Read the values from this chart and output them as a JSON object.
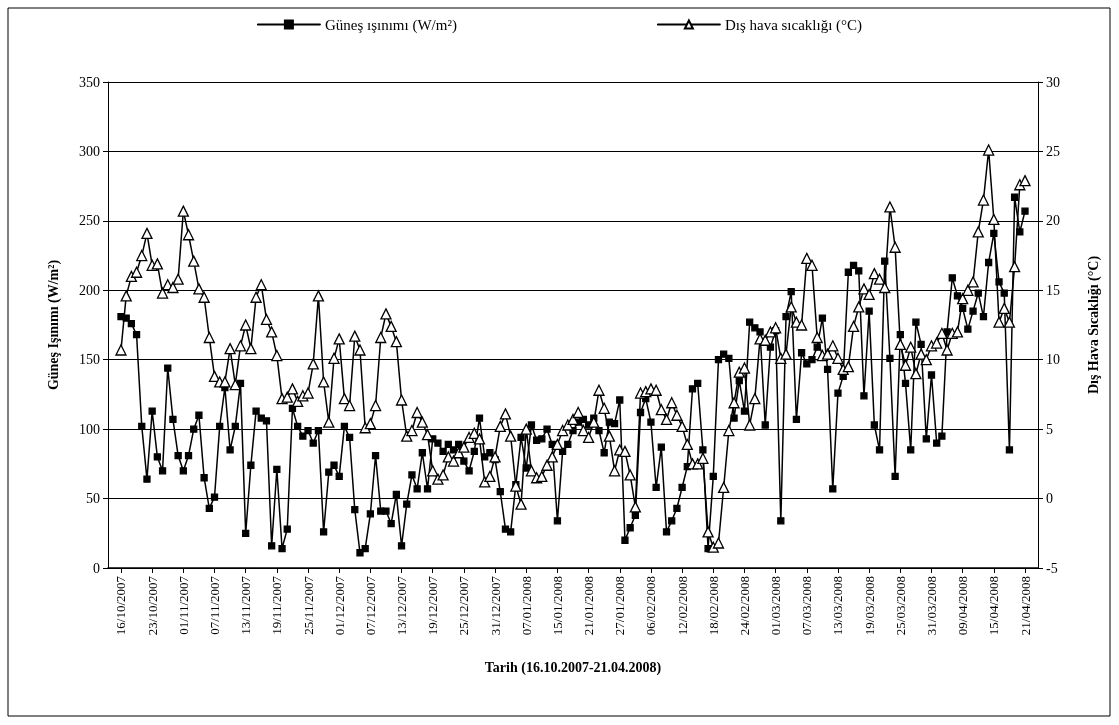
{
  "chart_data": {
    "type": "line",
    "xlabel": "Tarih (16.10.2007-21.04.2008)",
    "ylabel": "Güneş Işınımı (W/m²)",
    "y2label": "Dış Hava Sıcaklığı (°C)",
    "categories": [
      "16/10/2007",
      null,
      null,
      null,
      null,
      null,
      "23/10/2007",
      null,
      null,
      null,
      null,
      null,
      "01/11/2007",
      null,
      null,
      null,
      null,
      null,
      "07/11/2007",
      null,
      null,
      null,
      null,
      null,
      "13/11/2007",
      null,
      null,
      null,
      null,
      null,
      "19/11/2007",
      null,
      null,
      null,
      null,
      null,
      "25/11/2007",
      null,
      null,
      null,
      null,
      null,
      "01/12/2007",
      null,
      null,
      null,
      null,
      null,
      "07/12/2007",
      null,
      null,
      null,
      null,
      null,
      "13/12/2007",
      null,
      null,
      null,
      null,
      null,
      "19/12/2007",
      null,
      null,
      null,
      null,
      null,
      "25/12/2007",
      null,
      null,
      null,
      null,
      null,
      "31/12/2007",
      null,
      null,
      null,
      null,
      null,
      "07/01/2008",
      null,
      null,
      null,
      null,
      null,
      "15/01/2008",
      null,
      null,
      null,
      null,
      null,
      "21/01/2008",
      null,
      null,
      null,
      null,
      null,
      "27/01/2008",
      null,
      null,
      null,
      null,
      null,
      "06/02/2008",
      null,
      null,
      null,
      null,
      null,
      "12/02/2008",
      null,
      null,
      null,
      null,
      null,
      "18/02/2008",
      null,
      null,
      null,
      null,
      null,
      "24/02/2008",
      null,
      null,
      null,
      null,
      null,
      "01/03/2008",
      null,
      null,
      null,
      null,
      null,
      "07/03/2008",
      null,
      null,
      null,
      null,
      null,
      "13/03/2008",
      null,
      null,
      null,
      null,
      null,
      "19/03/2008",
      null,
      null,
      null,
      null,
      null,
      "25/03/2008",
      null,
      null,
      null,
      null,
      null,
      "31/03/2008",
      null,
      null,
      null,
      null,
      null,
      "09/04/2008",
      null,
      null,
      null,
      null,
      null,
      "15/04/2008",
      null,
      null,
      null,
      null,
      null,
      "21/04/2008"
    ],
    "series": [
      {
        "name": "Güneş ışınımı (W/m²)",
        "color": "#000000",
        "marker": "square",
        "values": [
          181,
          180,
          176,
          168,
          102,
          64,
          113,
          80,
          70,
          144,
          107,
          81,
          70,
          81,
          100,
          110,
          65,
          43,
          51,
          102,
          130,
          85,
          102,
          133,
          25,
          74,
          113,
          108,
          106,
          16,
          71,
          14,
          28,
          115,
          102,
          95,
          99,
          90,
          99,
          26,
          69,
          74,
          66,
          102,
          94,
          42,
          11,
          14,
          39,
          81,
          41,
          41,
          32,
          53,
          16,
          46,
          67,
          57,
          83,
          57,
          93,
          90,
          84,
          89,
          85,
          89,
          77,
          70,
          84,
          108,
          80,
          83,
          78,
          55,
          28,
          26,
          60,
          94,
          72,
          103,
          92,
          93,
          100,
          89,
          34,
          84,
          89,
          99,
          105,
          107,
          103,
          108,
          99,
          83,
          105,
          104,
          121,
          20,
          29,
          38,
          112,
          122,
          105,
          58,
          87,
          26,
          34,
          43,
          58,
          73,
          129,
          133,
          85,
          14,
          66,
          150,
          154,
          151,
          108,
          135,
          113,
          177,
          173,
          170,
          103,
          159,
          171,
          34,
          181,
          199,
          107,
          155,
          147,
          150,
          159,
          180,
          143,
          57,
          126,
          138,
          213,
          218,
          214,
          124,
          185,
          103,
          85,
          221,
          151,
          66,
          168,
          133,
          85,
          177,
          161,
          93,
          139,
          90,
          95,
          170,
          209,
          196,
          187,
          172,
          185,
          198,
          181,
          220,
          241,
          206,
          198,
          85,
          267,
          242,
          257
        ]
      },
      {
        "name": "Dış hava sıcaklığı (°C)",
        "color": "#000000",
        "marker": "triangle",
        "axis": "y2",
        "values": [
          10.7,
          14.6,
          16.0,
          16.3,
          17.5,
          19.1,
          16.8,
          16.9,
          14.8,
          15.4,
          15.2,
          15.8,
          20.7,
          19,
          17.1,
          15.1,
          14.5,
          11.6,
          8.8,
          8.4,
          8.4,
          10.8,
          8.2,
          11,
          12.5,
          10.8,
          14.5,
          15.4,
          12.9,
          12,
          10.3,
          7.2,
          7.3,
          7.9,
          7,
          7.4,
          7.6,
          9.7,
          14.6,
          8.4,
          5.5,
          10.1,
          11.5,
          7.2,
          6.7,
          11.7,
          10.7,
          5.1,
          5.4,
          6.7,
          11.6,
          13.3,
          12.4,
          11.3,
          7.1,
          4.5,
          4.9,
          6.2,
          5.5,
          4.6,
          2,
          1.4,
          1.7,
          3,
          2.7,
          3.3,
          3.7,
          4.4,
          4.7,
          4.3,
          1.2,
          1.6,
          3,
          5.2,
          6.1,
          4.5,
          0.9,
          -0.4,
          5,
          2,
          1.5,
          1.6,
          2.4,
          3,
          3.9,
          4.9,
          5.3,
          5.7,
          6.2,
          4.9,
          4.4,
          5.5,
          7.8,
          6.5,
          4.5,
          2,
          3.5,
          3.4,
          1.7,
          -0.6,
          7.6,
          7.7,
          7.9,
          7.8,
          6.4,
          5.7,
          6.9,
          6,
          5.2,
          3.9,
          2.5,
          2.5,
          2.9,
          -2.4,
          -3.5,
          -3.2,
          0.8,
          4.9,
          6.9,
          9.1,
          9.4,
          5.3,
          7.2,
          11.5,
          11.4,
          12,
          12.3,
          10.1,
          10.4,
          13.8,
          12.7,
          12.5,
          17.3,
          16.8,
          11.6,
          10.3,
          10.4,
          11,
          10.1,
          9.3,
          9.5,
          12.4,
          13.8,
          15.1,
          14.7,
          16.2,
          15.8,
          15.2,
          21,
          18.1,
          11.1,
          9.6,
          10.9,
          9,
          10.4,
          10,
          11,
          11.2,
          11.9,
          10.7,
          11.9,
          12,
          14.4,
          15,
          15.6,
          19.2,
          21.5,
          25.1,
          20.1,
          12.7,
          13.7,
          12.7,
          16.7,
          22.6,
          22.9
        ]
      }
    ],
    "ylim": [
      0,
      350
    ],
    "yticks": [
      0,
      50,
      100,
      150,
      200,
      250,
      300,
      350
    ],
    "y2lim": [
      -5,
      30
    ],
    "y2ticks": [
      -5,
      0,
      5,
      10,
      15,
      20,
      25,
      30
    ],
    "grid": "y",
    "legend": "top",
    "line_style": "solid"
  }
}
